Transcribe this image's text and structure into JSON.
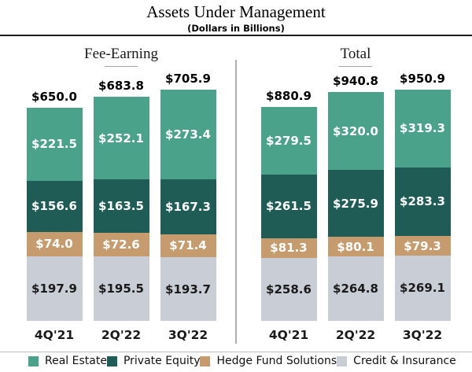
{
  "title": "Assets Under Management",
  "subtitle": "(Dollars in Billions)",
  "colors": {
    "real_estate": "#4BA28A",
    "private_equity": "#1F5C55",
    "hedge_fund_solutions": "#C69C6E",
    "credit_insurance": "#C9CDD5",
    "divider": "#B0B0B0"
  },
  "legend": [
    {
      "label": "Real Estate",
      "color": "#4BA28A",
      "label_color": "#ffffff"
    },
    {
      "label": "Private Equity",
      "color": "#1F5C55",
      "label_color": "#ffffff"
    },
    {
      "label": "Hedge Fund Solutions",
      "color": "#C69C6E",
      "label_color": "#ffffff"
    },
    {
      "label": "Credit & Insurance",
      "color": "#C9CDD5",
      "label_color": "#1a1a1a"
    }
  ],
  "chart_data": {
    "type": "bar",
    "stacked": true,
    "value_prefix": "$",
    "groups": [
      {
        "label": "Fee-Earning",
        "categories": [
          "4Q'21",
          "2Q'22",
          "3Q'22"
        ],
        "totals": [
          650.0,
          683.8,
          705.9
        ],
        "series": [
          {
            "name": "Real Estate",
            "values": [
              221.5,
              252.1,
              273.4
            ]
          },
          {
            "name": "Private Equity",
            "values": [
              156.6,
              163.5,
              167.3
            ]
          },
          {
            "name": "Hedge Fund Solutions",
            "values": [
              74.0,
              72.6,
              71.4
            ]
          },
          {
            "name": "Credit & Insurance",
            "values": [
              197.9,
              195.5,
              193.7
            ]
          }
        ]
      },
      {
        "label": "Total",
        "categories": [
          "4Q'21",
          "2Q'22",
          "3Q'22"
        ],
        "totals": [
          880.9,
          940.8,
          950.9
        ],
        "series": [
          {
            "name": "Real Estate",
            "values": [
              279.5,
              320.0,
              319.3
            ]
          },
          {
            "name": "Private Equity",
            "values": [
              261.5,
              275.9,
              283.3
            ]
          },
          {
            "name": "Hedge Fund Solutions",
            "values": [
              81.3,
              80.1,
              79.3
            ]
          },
          {
            "name": "Credit & Insurance",
            "values": [
              258.6,
              264.8,
              269.1
            ]
          }
        ]
      }
    ]
  }
}
